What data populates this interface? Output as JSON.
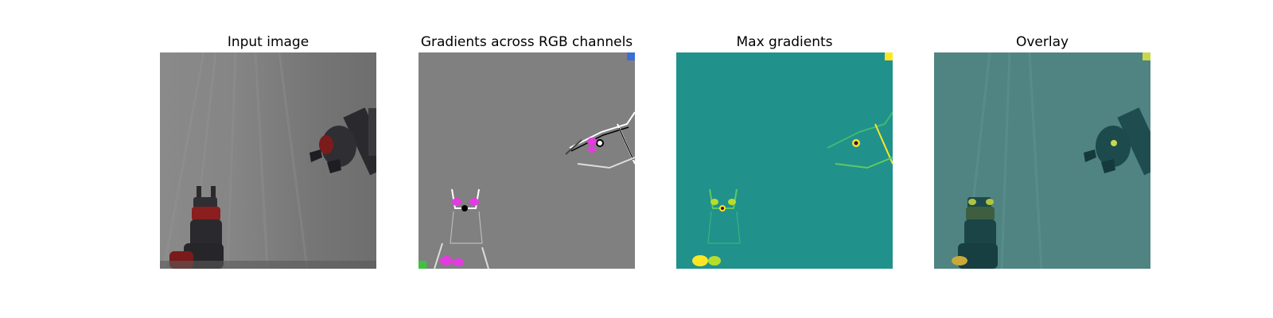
{
  "panels": [
    {
      "id": "input",
      "title": "Input image"
    },
    {
      "id": "gradients-rgb",
      "title": "Gradients across RGB channels"
    },
    {
      "id": "max-gradients",
      "title": "Max gradients"
    },
    {
      "id": "overlay",
      "title": "Overlay"
    }
  ],
  "colors": {
    "background_gray": "#7b7b7b",
    "gradient_gray": "#808080",
    "viridis_mid": "#21918c",
    "viridis_high": "#fde725",
    "robot_red": "#8b1e1e",
    "robot_dark": "#2a2a2e",
    "magenta": "#e43be0"
  }
}
